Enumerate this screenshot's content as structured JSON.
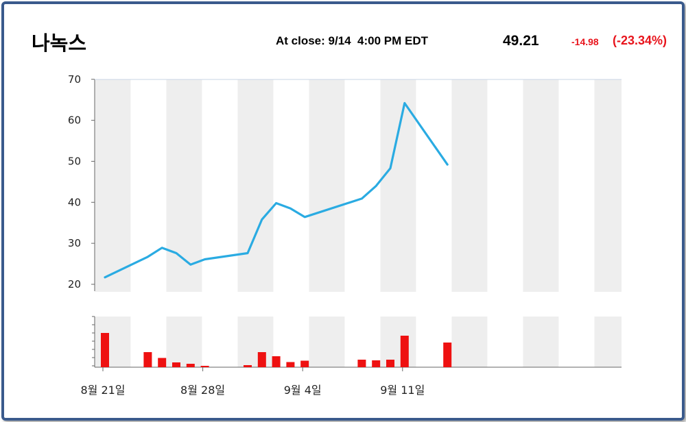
{
  "header": {
    "title": "나녹스",
    "close_label": "At close: 9/14  4:00 PM EDT",
    "price": "49.21",
    "change": "-14.98",
    "change_pct": "(-23.34%)"
  },
  "colors": {
    "line": "#2aabe2",
    "volume": "#ee1111",
    "band": "#eeeeee",
    "change": "#e8141c",
    "frame": "#3a5a8c"
  },
  "chart_data": {
    "type": "line",
    "title": "나녹스",
    "x_dates": [
      "8/21",
      "8/24",
      "8/25",
      "8/26",
      "8/27",
      "8/28",
      "8/31",
      "9/1",
      "9/2",
      "9/3",
      "9/4",
      "9/8",
      "9/9",
      "9/10",
      "9/11",
      "9/14"
    ],
    "close": [
      21.7,
      26.7,
      28.9,
      27.6,
      24.8,
      26.1,
      27.6,
      35.8,
      39.8,
      38.5,
      36.4,
      40.9,
      44.0,
      48.3,
      64.2,
      49.2
    ],
    "volume_relative": [
      1.0,
      0.44,
      0.27,
      0.14,
      0.1,
      0.04,
      0.06,
      0.44,
      0.32,
      0.15,
      0.19,
      0.22,
      0.2,
      0.22,
      0.92,
      0.72
    ],
    "y_ticks": [
      "70",
      "60",
      "50",
      "40",
      "30",
      "20"
    ],
    "ylim": [
      20,
      70
    ],
    "x_tick_labels": [
      {
        "label": "8월 21일",
        "date": "8/21"
      },
      {
        "label": "8월 28일",
        "date": "8/28"
      },
      {
        "label": "9월 4일",
        "date": "9/4"
      },
      {
        "label": "9월 11일",
        "date": "9/11"
      }
    ],
    "shaded_bands": "alternate weekly columns",
    "grid": false,
    "legend": "none"
  }
}
